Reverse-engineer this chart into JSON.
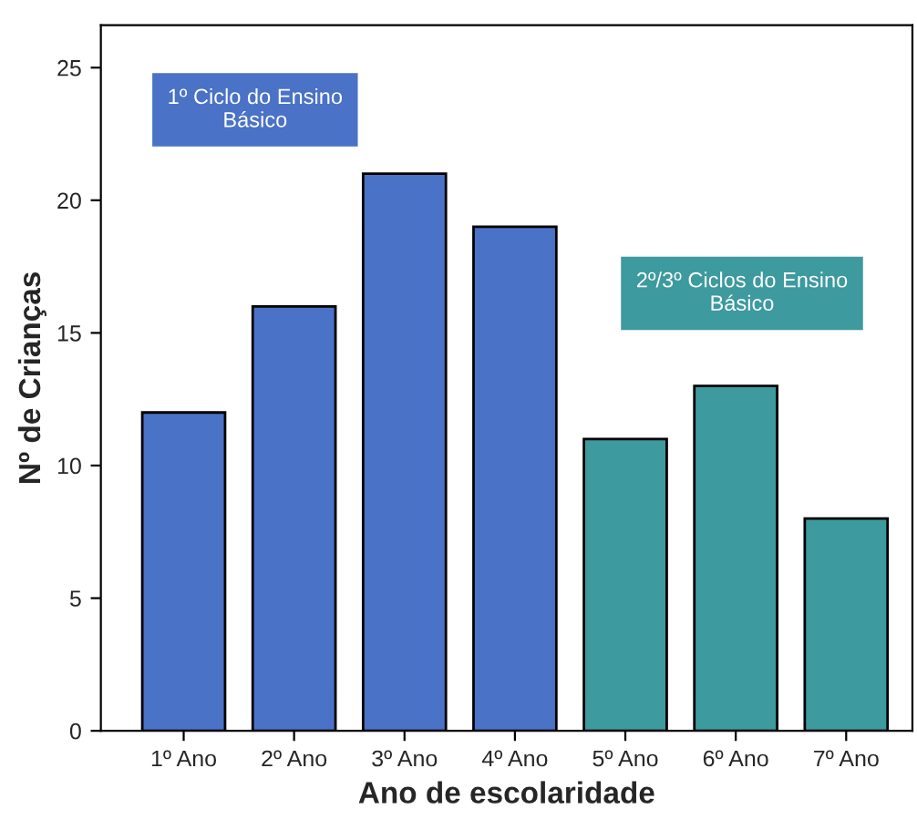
{
  "chart_data": {
    "type": "bar",
    "xlabel": "Ano de escolaridade",
    "ylabel": "Nº de Crianças",
    "categories": [
      "1º Ano",
      "2º Ano",
      "3º Ano",
      "4º Ano",
      "5º Ano",
      "6º Ano",
      "7º Ano"
    ],
    "values": [
      12,
      16,
      21,
      19,
      11,
      13,
      8
    ],
    "colors": [
      "#4a72c6",
      "#4a72c6",
      "#4a72c6",
      "#4a72c6",
      "#3d9a9e",
      "#3d9a9e",
      "#3d9a9e"
    ],
    "annotations": [
      "1º Ciclo do Ensino\nBásico",
      "2º/3º Ciclos do Ensino\nBásico"
    ],
    "ylim": [
      0,
      26.6
    ],
    "yticks": [
      0,
      5,
      10,
      15,
      20,
      25
    ],
    "grid": false,
    "legend": false
  }
}
